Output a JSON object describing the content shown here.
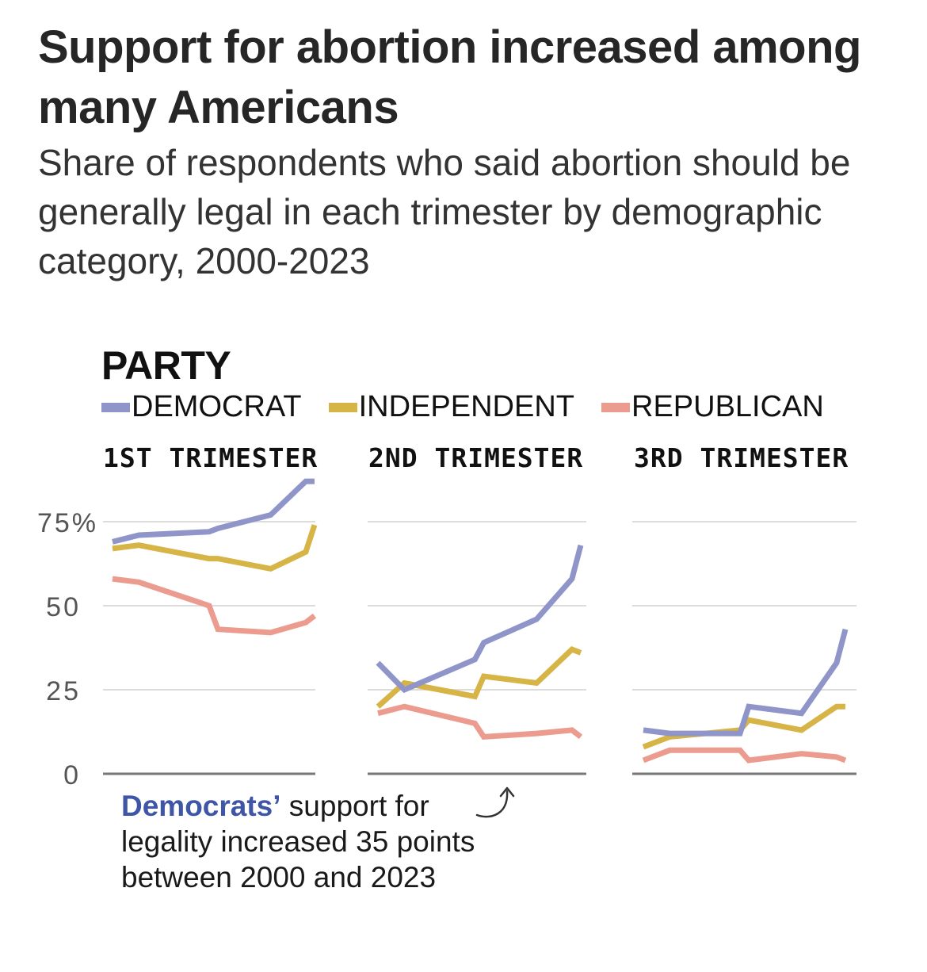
{
  "header": {
    "title": "Support for abortion increased among many Americans",
    "subtitle": "Share of respondents who said abortion should be generally legal in each trimester by demographic category, 2000-2023"
  },
  "section_label": "PARTY",
  "legend": [
    {
      "label": "DEMOCRAT",
      "color": "#8f95c9"
    },
    {
      "label": "INDEPENDENT",
      "color": "#d7b446"
    },
    {
      "label": "REPUBLICAN",
      "color": "#ec9c8f"
    }
  ],
  "annotation": {
    "highlight": "Democrats’",
    "text_line1": " support for",
    "text_line2": "legality increased 35 points",
    "text_line3": "between 2000 and 2023",
    "highlight_color": "#3f56a6",
    "arrow_icon": "curved-arrow-up"
  },
  "chart_data": {
    "type": "line",
    "title": "Support for abortion increased among many Americans",
    "subtitle": "Share of respondents who said abortion should be generally legal in each trimester by demographic category, 2000-2023",
    "xlabel": "",
    "ylabel": "",
    "ylim": [
      0,
      87
    ],
    "yticks": [
      0,
      25,
      50,
      75
    ],
    "ytick_labels": [
      "0",
      "25",
      "50",
      "75%"
    ],
    "grid": true,
    "legend_position": "top",
    "x": [
      2000,
      2003,
      2011,
      2012,
      2018,
      2022,
      2023
    ],
    "xlim": [
      2000,
      2023
    ],
    "panels": [
      {
        "title": "1ST TRIMESTER",
        "series": [
          {
            "name": "DEMOCRAT",
            "values": [
              69,
              71,
              72,
              73,
              77,
              87,
              87
            ]
          },
          {
            "name": "INDEPENDENT",
            "values": [
              67,
              68,
              64,
              64,
              61,
              66,
              74
            ]
          },
          {
            "name": "REPUBLICAN",
            "values": [
              58,
              57,
              50,
              43,
              42,
              45,
              47
            ]
          }
        ]
      },
      {
        "title": "2ND TRIMESTER",
        "series": [
          {
            "name": "DEMOCRAT",
            "values": [
              33,
              25,
              34,
              39,
              46,
              58,
              68
            ]
          },
          {
            "name": "INDEPENDENT",
            "values": [
              20,
              27,
              23,
              29,
              27,
              37,
              36
            ]
          },
          {
            "name": "REPUBLICAN",
            "values": [
              18,
              20,
              15,
              11,
              12,
              13,
              11
            ]
          }
        ]
      },
      {
        "title": "3RD TRIMESTER",
        "series": [
          {
            "name": "DEMOCRAT",
            "values": [
              13,
              12,
              12,
              20,
              18,
              33,
              43
            ]
          },
          {
            "name": "INDEPENDENT",
            "values": [
              8,
              11,
              13,
              16,
              13,
              20,
              20
            ]
          },
          {
            "name": "REPUBLICAN",
            "values": [
              4,
              7,
              7,
              4,
              6,
              5,
              4
            ]
          }
        ]
      }
    ]
  }
}
